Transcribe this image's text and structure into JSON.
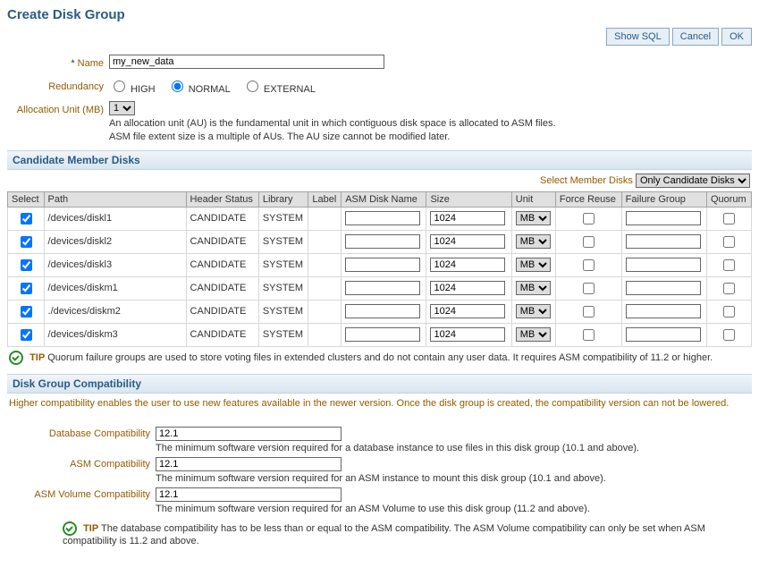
{
  "title": "Create Disk Group",
  "buttons": {
    "show_sql": "Show SQL",
    "cancel": "Cancel",
    "ok": "OK"
  },
  "form": {
    "name_label": "Name",
    "name_value": "my_new_data",
    "redundancy_label": "Redundancy",
    "redundancy_options": [
      "HIGH",
      "NORMAL",
      "EXTERNAL"
    ],
    "redundancy_selected": "NORMAL",
    "au_label": "Allocation Unit (MB)",
    "au_value": "1",
    "au_help": "An allocation unit (AU) is the fundamental unit in which contiguous disk space is allocated to ASM files. ASM file extent size is a multiple of AUs. The AU size cannot be modified later."
  },
  "disks_section": {
    "header": "Candidate Member Disks",
    "filter_label": "Select Member Disks",
    "filter_value": "Only Candidate Disks",
    "columns": {
      "select": "Select",
      "path": "Path",
      "hstat": "Header Status",
      "library": "Library",
      "label": "Label",
      "asmname": "ASM Disk Name",
      "size": "Size",
      "unit": "Unit",
      "force": "Force Reuse",
      "fgroup": "Failure Group",
      "quorum": "Quorum"
    },
    "rows": [
      {
        "path": "/devices/diskl1",
        "hstat": "CANDIDATE",
        "library": "SYSTEM",
        "asmname": "",
        "size": "1024",
        "unit": "MB",
        "selected": true,
        "force": false,
        "fgroup": "",
        "quorum": false
      },
      {
        "path": "/devices/diskl2",
        "hstat": "CANDIDATE",
        "library": "SYSTEM",
        "asmname": "",
        "size": "1024",
        "unit": "MB",
        "selected": true,
        "force": false,
        "fgroup": "",
        "quorum": false
      },
      {
        "path": "/devices/diskl3",
        "hstat": "CANDIDATE",
        "library": "SYSTEM",
        "asmname": "",
        "size": "1024",
        "unit": "MB",
        "selected": true,
        "force": false,
        "fgroup": "",
        "quorum": false
      },
      {
        "path": "/devices/diskm1",
        "hstat": "CANDIDATE",
        "library": "SYSTEM",
        "asmname": "",
        "size": "1024",
        "unit": "MB",
        "selected": true,
        "force": false,
        "fgroup": "",
        "quorum": false
      },
      {
        "path": "./devices/diskm2",
        "hstat": "CANDIDATE",
        "library": "SYSTEM",
        "asmname": "",
        "size": "1024",
        "unit": "MB",
        "selected": true,
        "force": false,
        "fgroup": "",
        "quorum": false
      },
      {
        "path": "/devices/diskm3",
        "hstat": "CANDIDATE",
        "library": "SYSTEM",
        "asmname": "",
        "size": "1024",
        "unit": "MB",
        "selected": true,
        "force": false,
        "fgroup": "",
        "quorum": false
      }
    ],
    "tip_label": "TIP",
    "tip_text": "Quorum failure groups are used to store voting files in extended clusters and do not contain any user data. It requires ASM compatibility of 11.2 or higher."
  },
  "compat_section": {
    "header": "Disk Group Compatibility",
    "hint": "Higher compatibility enables the user to use new features available in the newer version. Once the disk group is created, the compatibility version can not be lowered.",
    "db_label": "Database Compatibility",
    "db_value": "12.1",
    "db_help": "The minimum software version required for a database instance to use files in this disk group (10.1 and above).",
    "asm_label": "ASM Compatibility",
    "asm_value": "12.1",
    "asm_help": "The minimum software version required for an ASM instance to mount this disk group (10.1 and above).",
    "vol_label": "ASM Volume Compatibility",
    "vol_value": "12.1",
    "vol_help": "The minimum software version required for an ASM Volume to use this disk group (11.2 and above).",
    "tip_label": "TIP",
    "tip_text": "The database compatibility has to be less than or equal to the ASM compatibility. The ASM Volume compatibility can only be set when ASM compatibility is 11.2 and above."
  }
}
